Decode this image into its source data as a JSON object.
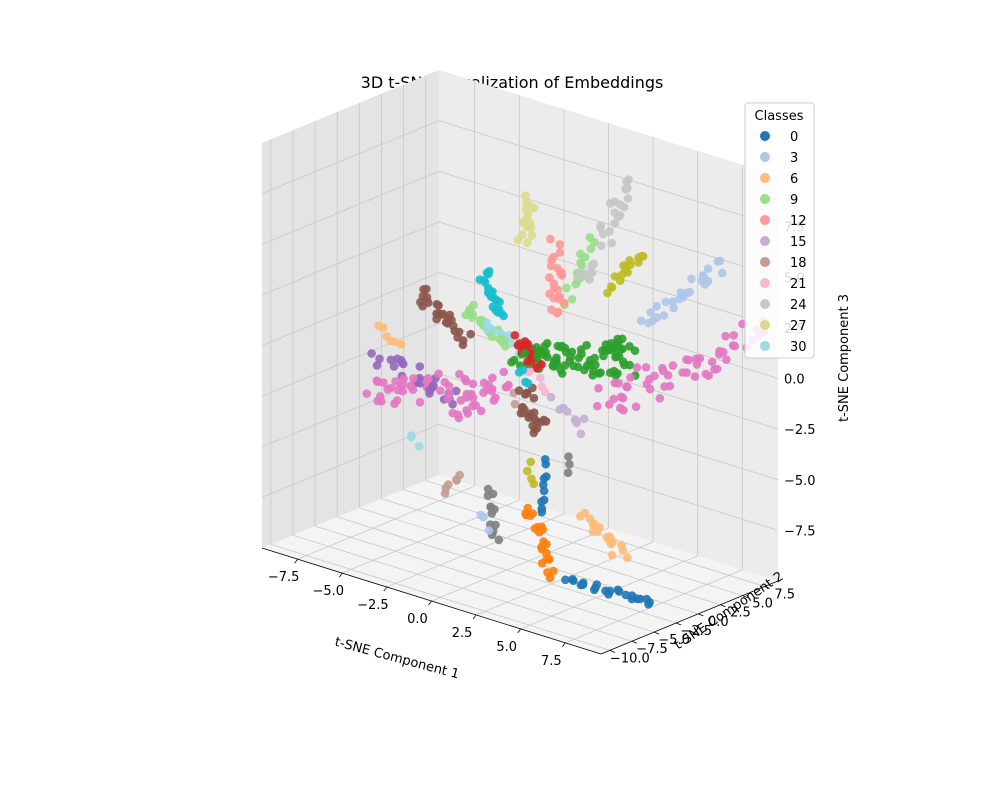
{
  "chart_data": {
    "type": "scatter",
    "projection": "3d",
    "title": "3D t-SNE Visualization of Embeddings",
    "xlabel": "t-SNE Component 1",
    "ylabel": "t-SNE Component 2",
    "zlabel": "t-SNE Component 3",
    "xlim": [
      -9.5,
      9.5
    ],
    "ylim": [
      -11,
      9
    ],
    "zlim": [
      -10,
      10
    ],
    "x_ticks": [
      "−7.5",
      "−5.0",
      "−2.5",
      "0.0",
      "2.5",
      "5.0",
      "7.5"
    ],
    "y_ticks": [
      "−10.0",
      "−7.5",
      "−5.0",
      "−2.5",
      "0.0",
      "2.5",
      "5.0",
      "7.5"
    ],
    "z_ticks": [
      "−7.5",
      "−5.0",
      "−2.5",
      "0.0",
      "2.5",
      "5.0",
      "7.5"
    ],
    "grid": true,
    "legend": {
      "title": "Classes",
      "placement": "top-right",
      "entries": [
        {
          "label": "0",
          "color": "#1f77b4"
        },
        {
          "label": "3",
          "color": "#aec7e8"
        },
        {
          "label": "6",
          "color": "#ffbb78"
        },
        {
          "label": "9",
          "color": "#98df8a"
        },
        {
          "label": "12",
          "color": "#ff9896"
        },
        {
          "label": "15",
          "color": "#c5b0d5"
        },
        {
          "label": "18",
          "color": "#c49c94"
        },
        {
          "label": "21",
          "color": "#f7b6d2"
        },
        {
          "label": "24",
          "color": "#c7c7c7"
        },
        {
          "label": "27",
          "color": "#dbdb8d"
        },
        {
          "label": "30",
          "color": "#9edae5"
        }
      ]
    },
    "clusters": [
      {
        "color": "#1f77b4",
        "from": [
          5.0,
          -6.0,
          -8.5
        ],
        "to": [
          9.0,
          -4.0,
          -8.8
        ],
        "n": 22,
        "spread": 0.2
      },
      {
        "color": "#1f77b4",
        "from": [
          1.5,
          -1.0,
          -4.5
        ],
        "to": [
          2.0,
          -3.0,
          -6.5
        ],
        "n": 10,
        "spread": 0.2
      },
      {
        "color": "#aec7e8",
        "from": [
          5.0,
          3.0,
          2.5
        ],
        "to": [
          8.5,
          5.0,
          6.0
        ],
        "n": 26,
        "spread": 0.35
      },
      {
        "color": "#aec7e8",
        "from": [
          -0.5,
          -4.5,
          -7.0
        ],
        "to": [
          -0.2,
          -4.0,
          -7.8
        ],
        "n": 3,
        "spread": 0.2
      },
      {
        "color": "#ffbb78",
        "from": [
          -9.0,
          1.0,
          -1.0
        ],
        "to": [
          -8.0,
          1.5,
          -1.8
        ],
        "n": 6,
        "spread": 0.2
      },
      {
        "color": "#ffbb78",
        "from": [
          4.5,
          -3.0,
          -6.0
        ],
        "to": [
          7.0,
          -3.5,
          -7.2
        ],
        "n": 18,
        "spread": 0.35
      },
      {
        "color": "#98df8a",
        "from": [
          -4.5,
          2.0,
          1.0
        ],
        "to": [
          -2.0,
          1.0,
          0.0
        ],
        "n": 18,
        "spread": 0.3
      },
      {
        "color": "#98df8a",
        "from": [
          -0.3,
          5.0,
          1.8
        ],
        "to": [
          0.3,
          6.5,
          4.8
        ],
        "n": 14,
        "spread": 0.2
      },
      {
        "color": "#ff9896",
        "from": [
          -0.8,
          5.0,
          4.5
        ],
        "to": [
          -0.2,
          3.5,
          1.5
        ],
        "n": 22,
        "spread": 0.35
      },
      {
        "color": "#c5b0d5",
        "from": [
          2.0,
          -1.0,
          -1.5
        ],
        "to": [
          3.2,
          -0.3,
          -2.6
        ],
        "n": 10,
        "spread": 0.3
      },
      {
        "color": "#c49c94",
        "from": [
          -2.8,
          -4.0,
          -6.5
        ],
        "to": [
          -2.0,
          -3.5,
          -5.8
        ],
        "n": 6,
        "spread": 0.2
      },
      {
        "color": "#c49c94",
        "from": [
          -1.5,
          0.5,
          -2.0
        ],
        "to": [
          -1.0,
          0.5,
          -2.5
        ],
        "n": 3,
        "spread": 0.2
      },
      {
        "color": "#f7b6d2",
        "from": [
          0.0,
          0.0,
          -0.6
        ],
        "to": [
          0.5,
          0.5,
          -1.2
        ],
        "n": 5,
        "spread": 0.3
      },
      {
        "color": "#c7c7c7",
        "from": [
          1.0,
          6.5,
          5.0
        ],
        "to": [
          1.6,
          8.0,
          7.8
        ],
        "n": 20,
        "spread": 0.45
      },
      {
        "color": "#c7c7c7",
        "from": [
          0.0,
          5.5,
          3.0
        ],
        "to": [
          0.8,
          6.0,
          3.6
        ],
        "n": 10,
        "spread": 0.35
      },
      {
        "color": "#dbdb8d",
        "from": [
          -3.5,
          6.5,
          3.5
        ],
        "to": [
          -3.0,
          6.0,
          5.8
        ],
        "n": 16,
        "spread": 0.3
      },
      {
        "color": "#9edae5",
        "from": [
          -3.0,
          1.0,
          0.7
        ],
        "to": [
          -1.0,
          2.5,
          -0.6
        ],
        "n": 18,
        "spread": 0.25
      },
      {
        "color": "#9edae5",
        "from": [
          -5.5,
          -2.0,
          -5.0
        ],
        "to": [
          -5.3,
          -2.0,
          -5.4
        ],
        "n": 3,
        "spread": 0.2
      },
      {
        "color": "#17becf",
        "from": [
          -4.0,
          3.0,
          2.5
        ],
        "to": [
          -2.6,
          2.0,
          1.2
        ],
        "n": 22,
        "spread": 0.25
      },
      {
        "color": "#17becf",
        "from": [
          -0.3,
          -0.5,
          -0.5
        ],
        "to": [
          0.2,
          -0.5,
          -1.0
        ],
        "n": 4,
        "spread": 0.2
      },
      {
        "color": "#8c564b",
        "from": [
          -7.0,
          2.0,
          1.0
        ],
        "to": [
          -4.0,
          1.0,
          -0.4
        ],
        "n": 26,
        "spread": 0.3
      },
      {
        "color": "#8c564b",
        "from": [
          -0.5,
          0.5,
          -2.0
        ],
        "to": [
          0.5,
          0.0,
          -3.4
        ],
        "n": 24,
        "spread": 0.45
      },
      {
        "color": "#e377c2",
        "from": [
          -8.0,
          -2.0,
          -3.5
        ],
        "to": [
          -3.0,
          -0.5,
          -2.0
        ],
        "n": 42,
        "spread": 0.6
      },
      {
        "color": "#e377c2",
        "from": [
          -3.0,
          -2.0,
          -3.0
        ],
        "to": [
          -0.8,
          -1.0,
          -1.2
        ],
        "n": 22,
        "spread": 0.55
      },
      {
        "color": "#e377c2",
        "from": [
          4.0,
          0.0,
          -1.0
        ],
        "to": [
          7.5,
          4.0,
          1.0
        ],
        "n": 34,
        "spread": 0.7
      },
      {
        "color": "#e377c2",
        "from": [
          7.0,
          5.0,
          0.5
        ],
        "to": [
          9.5,
          8.0,
          3.0
        ],
        "n": 22,
        "spread": 0.5
      },
      {
        "color": "#9467bd",
        "from": [
          -8.0,
          -1.0,
          -2.0
        ],
        "to": [
          -3.5,
          -1.0,
          -2.8
        ],
        "n": 26,
        "spread": 0.5
      },
      {
        "color": "#d62728",
        "from": [
          -0.8,
          0.5,
          0.6
        ],
        "to": [
          0.0,
          0.8,
          -0.6
        ],
        "n": 20,
        "spread": 0.35
      },
      {
        "color": "#2ca02c",
        "from": [
          -0.8,
          0.5,
          -0.2
        ],
        "to": [
          4.0,
          2.5,
          0.5
        ],
        "n": 70,
        "spread": 0.7
      },
      {
        "color": "#2ca02c",
        "from": [
          2.5,
          3.5,
          0.5
        ],
        "to": [
          4.0,
          3.5,
          1.2
        ],
        "n": 14,
        "spread": 0.3
      },
      {
        "color": "#bcbd22",
        "from": [
          1.5,
          6.0,
          2.8
        ],
        "to": [
          3.0,
          6.5,
          5.0
        ],
        "n": 16,
        "spread": 0.25
      },
      {
        "color": "#bcbd22",
        "from": [
          1.0,
          -2.0,
          -4.5
        ],
        "to": [
          1.3,
          -2.2,
          -5.5
        ],
        "n": 4,
        "spread": 0.15
      },
      {
        "color": "#7f7f7f",
        "from": [
          -0.5,
          -3.5,
          -6.0
        ],
        "to": [
          -0.3,
          -3.0,
          -8.5
        ],
        "n": 12,
        "spread": 0.2
      },
      {
        "color": "#7f7f7f",
        "from": [
          2.5,
          -0.5,
          -4.2
        ],
        "to": [
          2.6,
          -0.6,
          -4.7
        ],
        "n": 3,
        "spread": 0.15
      },
      {
        "color": "#ff7f0e",
        "from": [
          2.0,
          -4.0,
          -6.0
        ],
        "to": [
          2.8,
          -3.0,
          -9.5
        ],
        "n": 22,
        "spread": 0.3
      }
    ]
  }
}
